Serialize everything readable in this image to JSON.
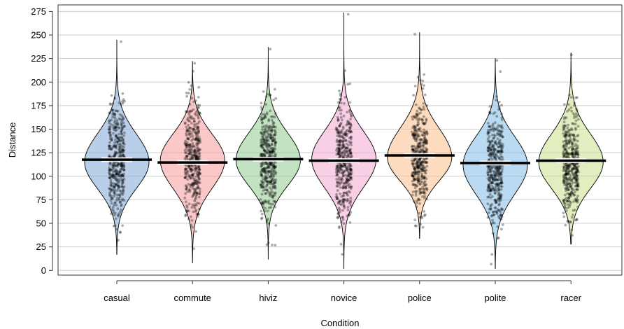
{
  "chart_data": {
    "type": "pirate",
    "xlabel": "Condition",
    "ylabel": "Distance",
    "ylim": [
      -5,
      282
    ],
    "yticks": [
      0,
      25,
      50,
      75,
      100,
      125,
      150,
      175,
      200,
      225,
      250,
      275
    ],
    "grid": true,
    "categories": [
      "casual",
      "commute",
      "hiviz",
      "novice",
      "police",
      "polite",
      "racer"
    ],
    "colors": [
      "#7fa6d6",
      "#f59a9a",
      "#8fcb8f",
      "#f3a8cf",
      "#fbbd8a",
      "#80bce6",
      "#c8e08a"
    ],
    "means": [
      117.6,
      114.6,
      118.1,
      116.6,
      122.1,
      114.1,
      116.6
    ],
    "series": [
      {
        "category": "casual",
        "min": 17,
        "max": 245,
        "mean": 117.6,
        "mode": 115,
        "sd_lo": 28,
        "sd_hi": 30
      },
      {
        "category": "commute",
        "min": 8,
        "max": 222,
        "mean": 114.6,
        "mode": 117,
        "sd_lo": 30,
        "sd_hi": 28
      },
      {
        "category": "hiviz",
        "min": 12,
        "max": 237,
        "mean": 118.1,
        "mode": 117,
        "sd_lo": 27,
        "sd_hi": 29
      },
      {
        "category": "novice",
        "min": 2,
        "max": 274,
        "mean": 116.6,
        "mode": 118,
        "sd_lo": 30,
        "sd_hi": 30
      },
      {
        "category": "police",
        "min": 34,
        "max": 253,
        "mean": 122.1,
        "mode": 120,
        "sd_lo": 25,
        "sd_hi": 31
      },
      {
        "category": "polite",
        "min": 2,
        "max": 225,
        "mean": 114.1,
        "mode": 112,
        "sd_lo": 31,
        "sd_hi": 30
      },
      {
        "category": "racer",
        "min": 28,
        "max": 231,
        "mean": 116.6,
        "mode": 115,
        "sd_lo": 28,
        "sd_hi": 30
      }
    ]
  }
}
